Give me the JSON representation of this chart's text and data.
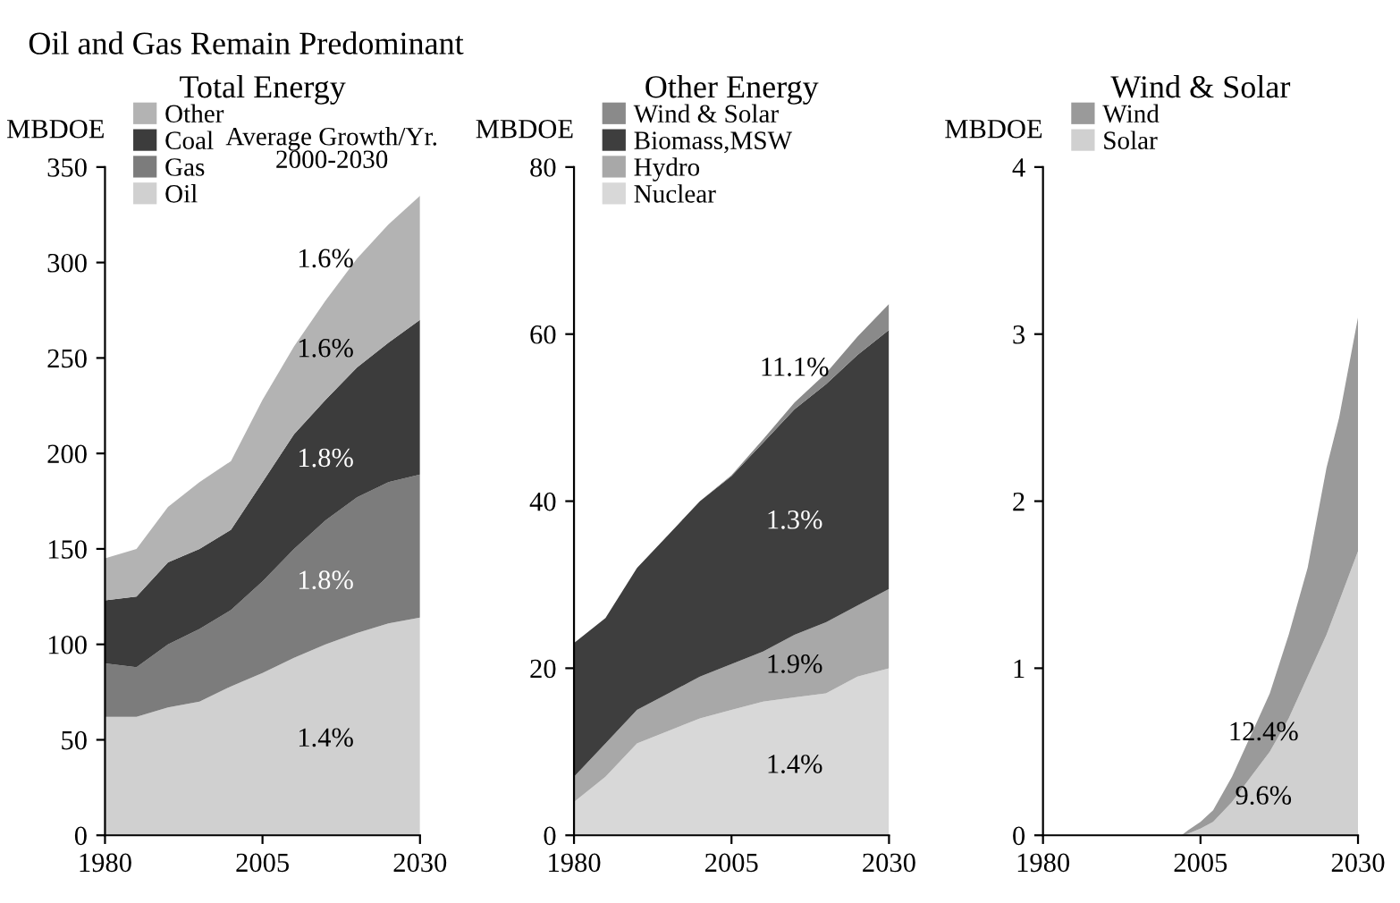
{
  "chart_data": [
    {
      "type": "area",
      "stacked": true,
      "title": "Oil and Gas Remain Predominant",
      "subtitle": "Total Energy",
      "ylabel": "MBDOE",
      "x": [
        1980,
        1985,
        1990,
        1995,
        2000,
        2005,
        2010,
        2015,
        2020,
        2025,
        2030
      ],
      "xlim": [
        1980,
        2030
      ],
      "xticks": [
        1980,
        2005,
        2030
      ],
      "ylim": [
        0,
        350
      ],
      "yticks": [
        0,
        50,
        100,
        150,
        200,
        250,
        300,
        350
      ],
      "grid": false,
      "legend": "top left",
      "series": [
        {
          "name": "Oil",
          "color": "#d0d0d0",
          "values": [
            62,
            62,
            67,
            70,
            78,
            85,
            93,
            100,
            106,
            111,
            114
          ]
        },
        {
          "name": "Gas",
          "color": "#7c7c7c",
          "values": [
            28,
            26,
            33,
            38,
            40,
            48,
            57,
            65,
            71,
            74,
            75
          ]
        },
        {
          "name": "Coal",
          "color": "#3c3c3c",
          "values": [
            33,
            37,
            43,
            42,
            42,
            52,
            60,
            63,
            68,
            73,
            81
          ]
        },
        {
          "name": "Other",
          "color": "#b3b3b3",
          "values": [
            22,
            25,
            29,
            35,
            36,
            43,
            46,
            52,
            57,
            62,
            65
          ]
        }
      ],
      "annotations": [
        "Average Growth/Yr.\n2000-2030",
        "1.6%",
        "1.6%",
        "1.8%",
        "1.8%",
        "1.4%"
      ]
    },
    {
      "type": "area",
      "stacked": true,
      "title": "Other Energy",
      "ylabel": "MBDOE",
      "x": [
        1980,
        1985,
        1990,
        1995,
        2000,
        2005,
        2010,
        2015,
        2020,
        2025,
        2030
      ],
      "xlim": [
        1980,
        2030
      ],
      "xticks": [
        1980,
        2005,
        2030
      ],
      "ylim": [
        0,
        80
      ],
      "yticks": [
        0,
        20,
        40,
        60,
        80
      ],
      "grid": false,
      "legend": "top left",
      "series": [
        {
          "name": "Nuclear",
          "color": "#d8d8d8",
          "values": [
            4,
            7,
            11,
            12.5,
            14,
            15,
            16,
            16.5,
            17,
            19,
            20
          ]
        },
        {
          "name": "Hydro",
          "color": "#a8a8a8",
          "values": [
            3,
            4,
            4,
            4.5,
            5,
            5.5,
            6,
            7.5,
            8.5,
            8.5,
            9.5
          ]
        },
        {
          "name": "Biomass,MSW",
          "color": "#3e3e3e",
          "values": [
            16,
            15,
            17,
            19,
            21,
            22.5,
            25,
            27,
            28.5,
            30,
            31
          ]
        },
        {
          "name": "Wind & Solar",
          "color": "#8a8a8a",
          "values": [
            0,
            0,
            0,
            0,
            0,
            0.1,
            0.4,
            0.8,
            1.3,
            2.2,
            3.1
          ]
        }
      ],
      "annotations": [
        "11.1%",
        "1.3%",
        "1.9%",
        "1.4%"
      ]
    },
    {
      "type": "area",
      "stacked": true,
      "title": "Wind & Solar",
      "ylabel": "MBDOE",
      "x": [
        1980,
        2002,
        2003,
        2005,
        2007,
        2010,
        2013,
        2016,
        2019,
        2022,
        2025,
        2027,
        2030
      ],
      "xlim": [
        1980,
        2030
      ],
      "xticks": [
        1980,
        2005,
        2030
      ],
      "ylim": [
        0,
        4
      ],
      "yticks": [
        0,
        1,
        2,
        3,
        4
      ],
      "grid": false,
      "legend": "top left",
      "series": [
        {
          "name": "Solar",
          "color": "#d0d0d0",
          "values": [
            0,
            0,
            0.01,
            0.04,
            0.08,
            0.2,
            0.35,
            0.5,
            0.7,
            0.95,
            1.2,
            1.4,
            1.7
          ]
        },
        {
          "name": "Wind",
          "color": "#9a9a9a",
          "values": [
            0,
            0,
            0.02,
            0.04,
            0.07,
            0.15,
            0.25,
            0.35,
            0.5,
            0.65,
            1.0,
            1.1,
            1.4
          ]
        }
      ],
      "annotations": [
        "12.4%",
        "9.6%"
      ]
    }
  ]
}
